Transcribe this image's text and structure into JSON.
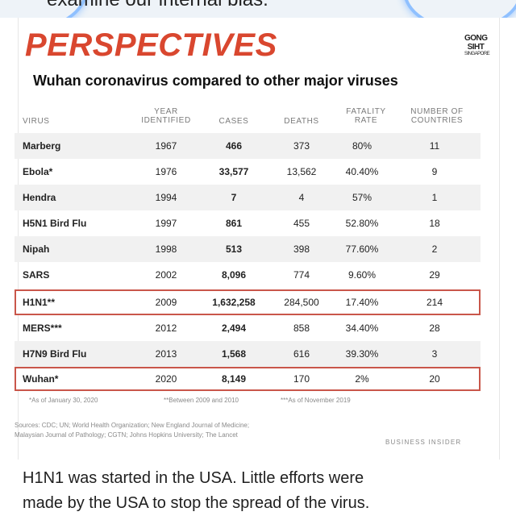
{
  "top": {
    "partial_text": "examine our internal bias."
  },
  "card": {
    "brand": "PERSPECTIVES",
    "logo_lines": [
      "GONG",
      "SIHT",
      "SINGAPORE"
    ],
    "subtitle": "Wuhan coronavirus compared to other major viruses"
  },
  "table": {
    "headers": {
      "virus": "VIRUS",
      "year": [
        "YEAR",
        "IDENTIFIED"
      ],
      "cases": "CASES",
      "deaths": "DEATHS",
      "rate": [
        "FATALITY",
        "RATE"
      ],
      "countries": [
        "NUMBER OF",
        "COUNTRIES"
      ]
    },
    "rows": [
      {
        "virus": "Marberg",
        "year": "1967",
        "cases": "466",
        "deaths": "373",
        "rate": "80%",
        "countries": "11"
      },
      {
        "virus": "Ebola*",
        "year": "1976",
        "cases": "33,577",
        "deaths": "13,562",
        "rate": "40.40%",
        "countries": "9"
      },
      {
        "virus": "Hendra",
        "year": "1994",
        "cases": "7",
        "deaths": "4",
        "rate": "57%",
        "countries": "1"
      },
      {
        "virus": "H5N1 Bird Flu",
        "year": "1997",
        "cases": "861",
        "deaths": "455",
        "rate": "52.80%",
        "countries": "18"
      },
      {
        "virus": "Nipah",
        "year": "1998",
        "cases": "513",
        "deaths": "398",
        "rate": "77.60%",
        "countries": "2"
      },
      {
        "virus": "SARS",
        "year": "2002",
        "cases": "8,096",
        "deaths": "774",
        "rate": "9.60%",
        "countries": "29"
      },
      {
        "virus": "H1N1**",
        "year": "2009",
        "cases": "1,632,258",
        "deaths": "284,500",
        "rate": "17.40%",
        "countries": "214"
      },
      {
        "virus": "MERS***",
        "year": "2012",
        "cases": "2,494",
        "deaths": "858",
        "rate": "34.40%",
        "countries": "28"
      },
      {
        "virus": "H7N9 Bird Flu",
        "year": "2013",
        "cases": "1,568",
        "deaths": "616",
        "rate": "39.30%",
        "countries": "3"
      },
      {
        "virus": "Wuhan*",
        "year": "2020",
        "cases": "8,149",
        "deaths": "170",
        "rate": "2%",
        "countries": "20"
      }
    ]
  },
  "notes": {
    "n1": "*As of January 30, 2020",
    "n2": "**Between 2009 and 2010",
    "n3": "***As of November 2019",
    "sources_line1": "Sources: CDC; UN; World Health Organization; New England Journal of Medicine;",
    "sources_line2": "Malaysian Journal of Pathology; CGTN; Johns Hopkins University; The Lancet",
    "source_brand": "BUSINESS INSIDER"
  },
  "caption": {
    "line1": "H1N1 was started in the USA. Little efforts were",
    "line2": "made by the USA to stop the spread of the virus."
  },
  "colors": {
    "brand_red": "#d9472f",
    "highlight_border": "#c9564a",
    "row_alt": "#f1f1f1"
  }
}
